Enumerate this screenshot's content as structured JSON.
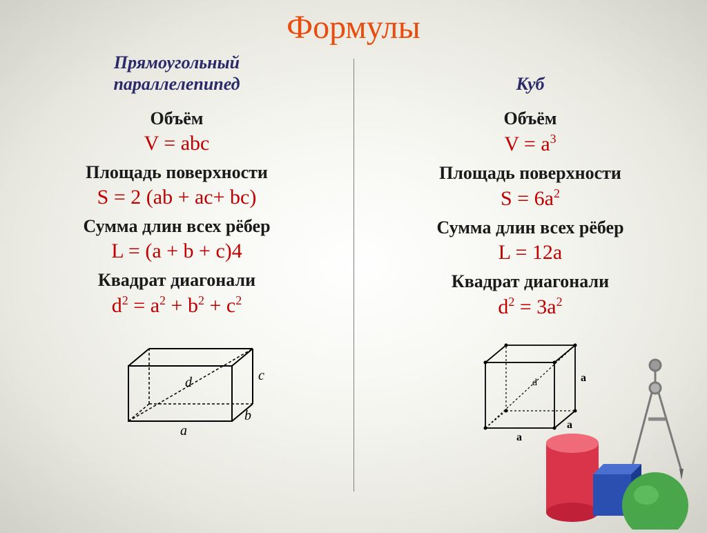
{
  "title": "Формулы",
  "left": {
    "subtitle_l1": "Прямоугольный",
    "subtitle_l2": "параллелепипед",
    "volume_label": "Объём",
    "volume_formula": "V = abc",
    "surface_label": "Площадь поверхности",
    "surface_formula": "S = 2 (ab + ac+ bc)",
    "edges_label": "Сумма длин всех рёбер",
    "edges_formula": "L = (a + b + c)4",
    "diag_label": "Квадрат диагонали",
    "diag_formula_html": "d<sup>2</sup> = a<sup>2</sup> + b<sup>2</sup> + c<sup>2</sup>"
  },
  "right": {
    "subtitle_l1": "Куб",
    "subtitle_l2": "",
    "volume_label": "Объём",
    "volume_formula_html": "V = a<sup>3</sup>",
    "surface_label": "Площадь поверхности",
    "surface_formula_html": "S = 6a<sup>2</sup>",
    "edges_label": "Сумма длин всех рёбер",
    "edges_formula": "L = 12a",
    "diag_label": "Квадрат диагонали",
    "diag_formula_html": "d<sup>2</sup> = 3a<sup>2</sup>"
  },
  "style": {
    "title_color": "#e84d0e",
    "subtitle_color": "#2a2a6a",
    "label_color": "#1a1a1a",
    "formula_color": "#c00000",
    "title_fontsize": 48,
    "subtitle_fontsize": 26,
    "label_fontsize": 26,
    "formula_fontsize": 30,
    "background_gradient": [
      "#ffffff",
      "#f5f5f0",
      "#e8e8e0",
      "#d0d0c8"
    ]
  },
  "diagrams": {
    "cuboid": {
      "labels": {
        "a": "a",
        "b": "b",
        "c": "c",
        "d": "d"
      },
      "stroke": "#000000",
      "dash": "4,3"
    },
    "cube": {
      "labels": {
        "a": "a",
        "d": "d"
      },
      "stroke": "#000000",
      "dash": "3,3"
    }
  },
  "deco": {
    "cylinder_color": "#d9344a",
    "cube_color": "#2b4fb0",
    "sphere_color": "#4aa64a",
    "compass_color": "#7a7a7a"
  }
}
